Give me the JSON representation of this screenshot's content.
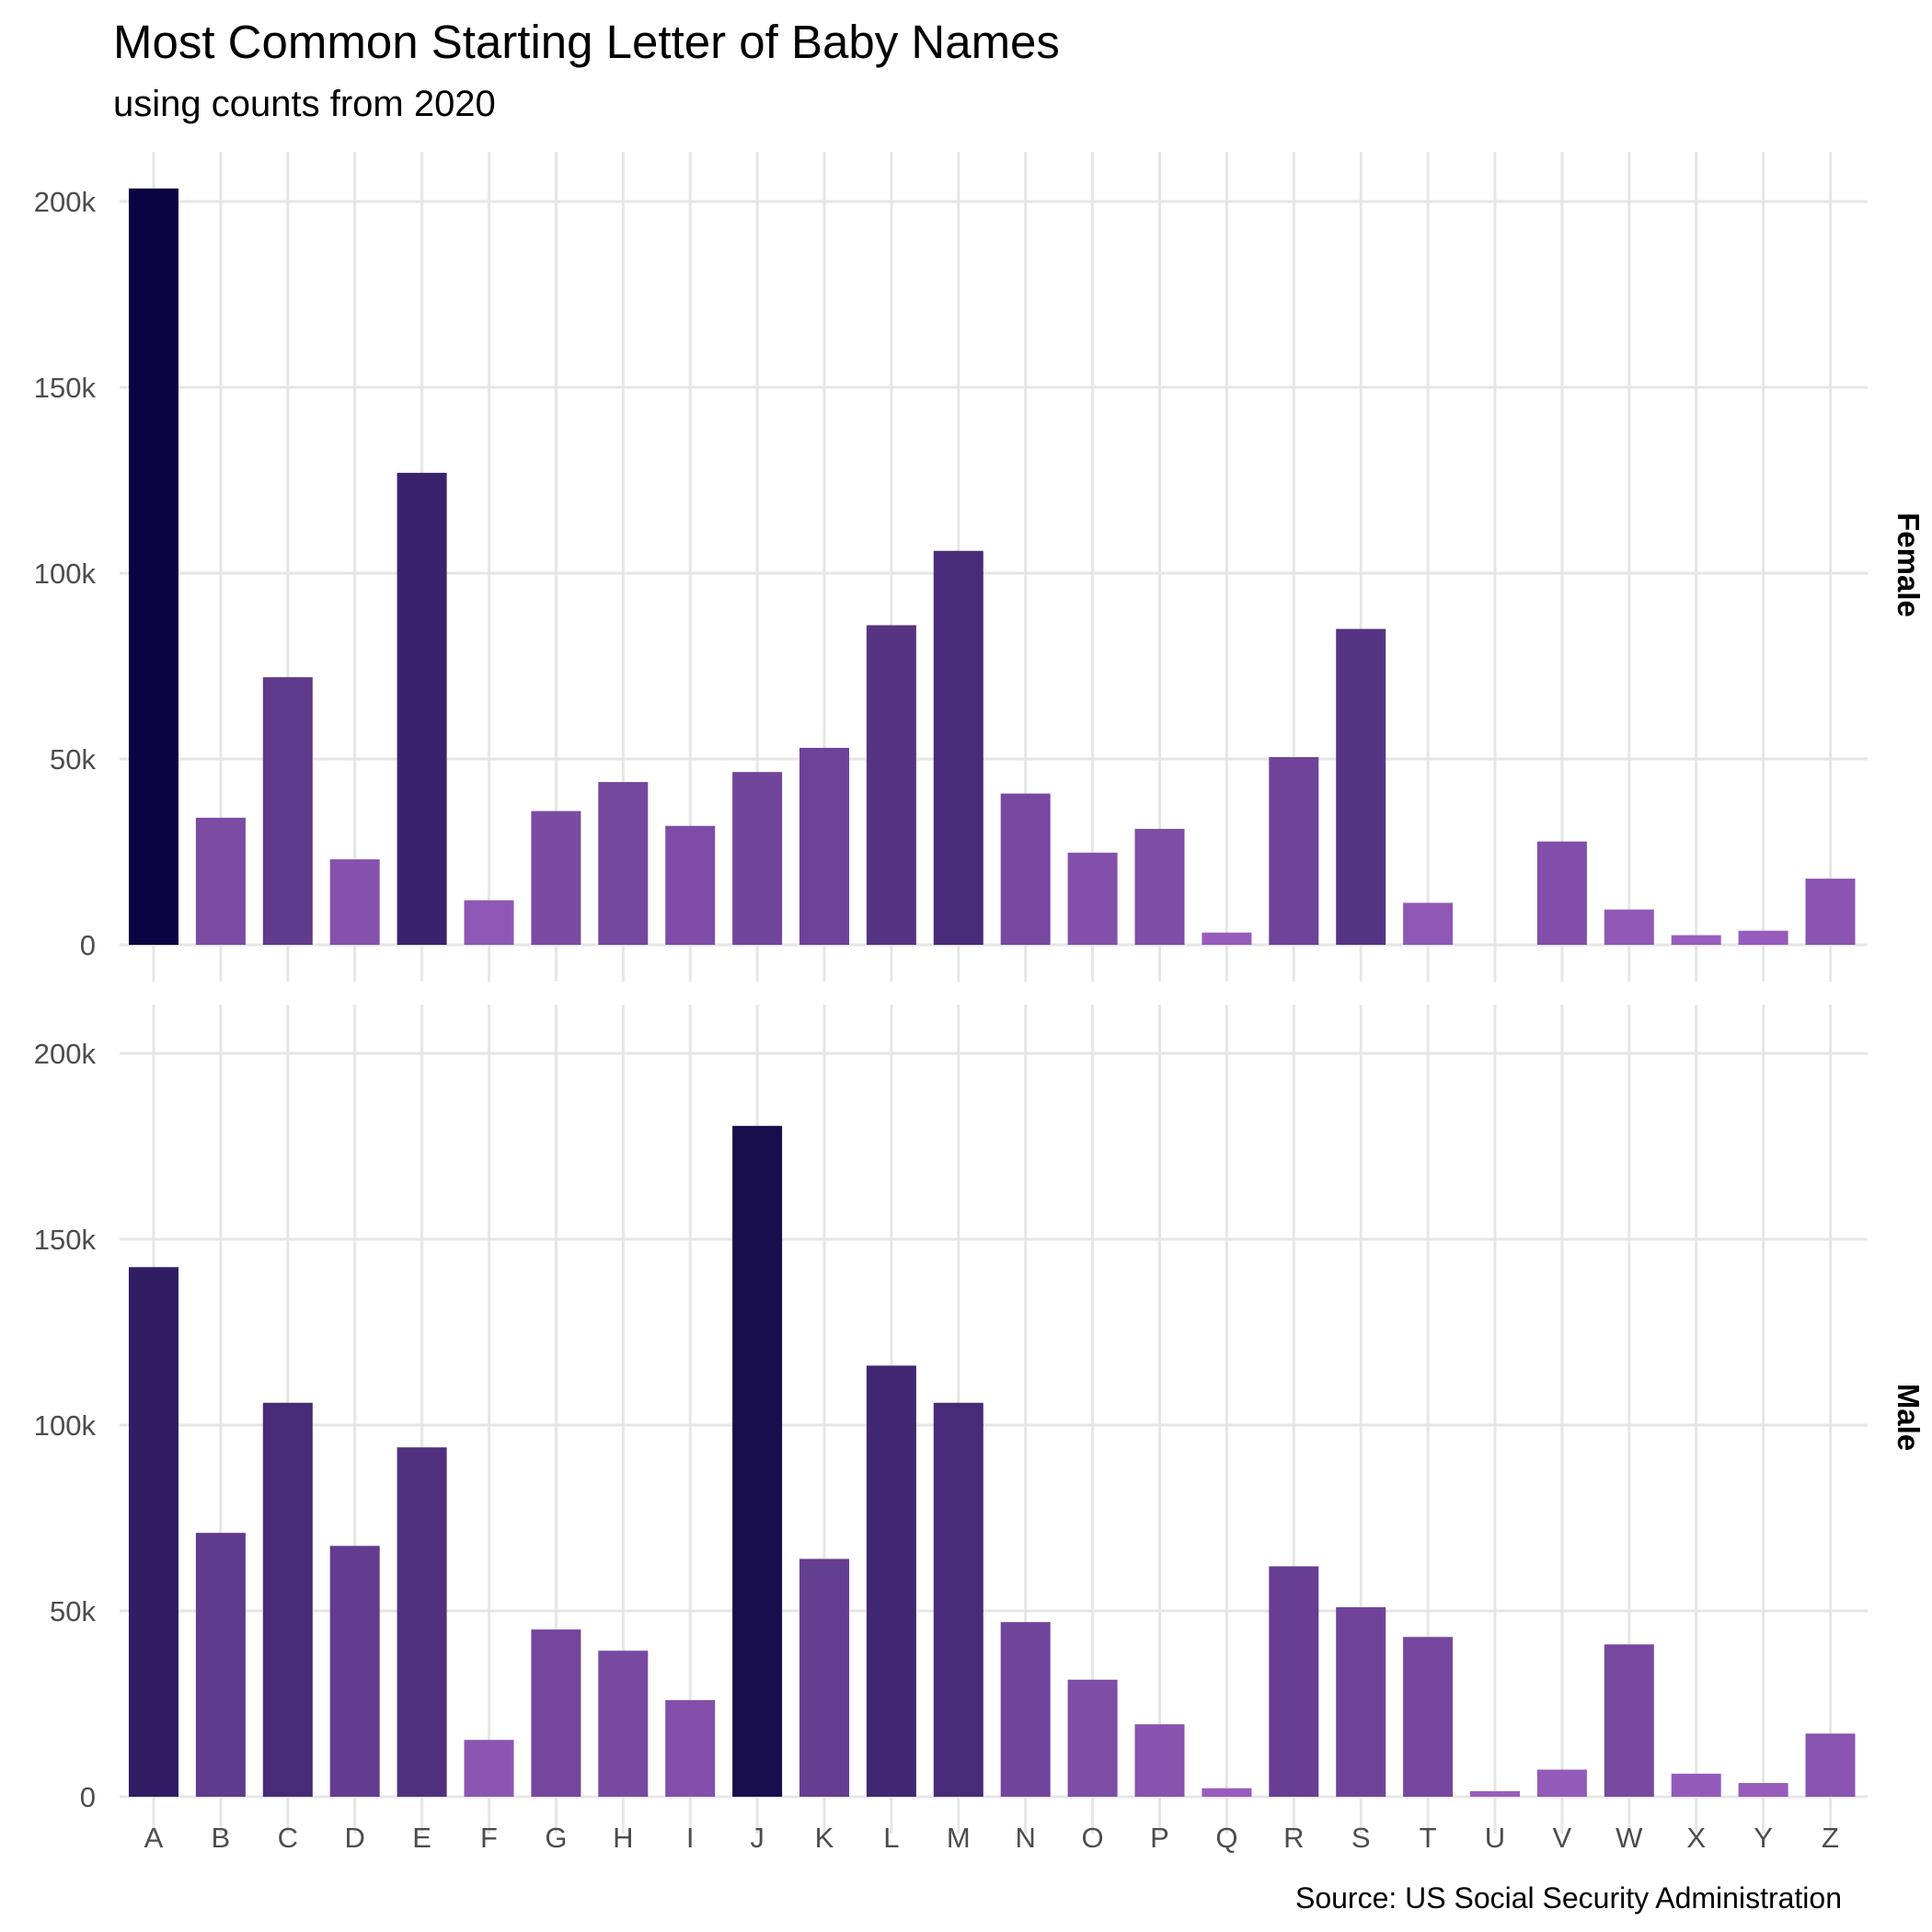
{
  "chart_data": {
    "type": "bar",
    "title": "Most Common Starting Letter of Baby Names",
    "subtitle": "using counts from 2020",
    "caption": "Source: US Social Security Administration",
    "xlabel": "",
    "ylabel": "",
    "ylim": [
      0,
      215000
    ],
    "y_ticks": [
      0,
      50000,
      100000,
      150000,
      200000
    ],
    "y_tick_labels": [
      "0",
      "50k",
      "100k",
      "150k",
      "200k"
    ],
    "grid": true,
    "legend": "none",
    "fill_scale": {
      "low": "#9c5fc0",
      "high": "#0a0542"
    },
    "categories": [
      "A",
      "B",
      "C",
      "D",
      "E",
      "F",
      "G",
      "H",
      "I",
      "J",
      "K",
      "L",
      "M",
      "N",
      "O",
      "P",
      "Q",
      "R",
      "S",
      "T",
      "U",
      "V",
      "W",
      "X",
      "Y",
      "Z"
    ],
    "panels": [
      {
        "name": "Female",
        "values": [
          203500,
          34200,
          72000,
          23000,
          127000,
          12000,
          36000,
          43800,
          32000,
          46500,
          53000,
          86000,
          106000,
          40700,
          24800,
          31200,
          3300,
          50500,
          85000,
          11300,
          0,
          27800,
          9500,
          2600,
          3800,
          17800
        ]
      },
      {
        "name": "Male",
        "values": [
          142500,
          71000,
          106000,
          67500,
          94000,
          15300,
          45000,
          39300,
          26000,
          180500,
          64000,
          116000,
          106000,
          47000,
          31500,
          19500,
          2300,
          62000,
          51000,
          43000,
          1500,
          7300,
          41000,
          6200,
          3700,
          17000
        ]
      }
    ]
  }
}
